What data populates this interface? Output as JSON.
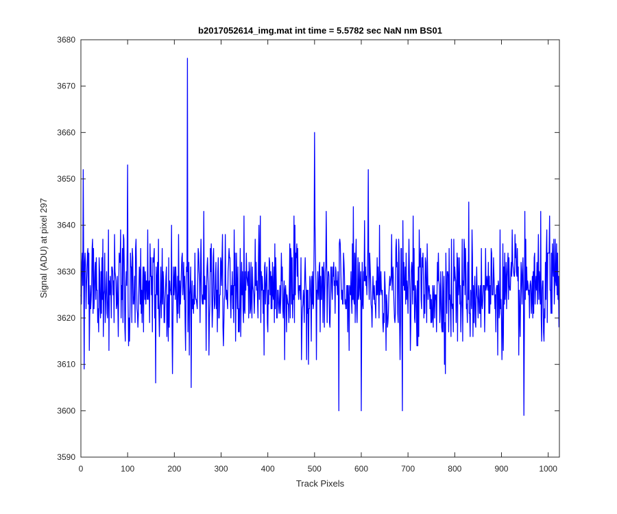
{
  "chart_data": {
    "type": "line",
    "title": "b2017052614_img.mat int time = 5.5782 sec  NaN nm BS01",
    "xlabel": "Track Pixels",
    "ylabel": "Signal (ADU) at pixel 297",
    "xlim": [
      0,
      1024
    ],
    "ylim": [
      3590,
      3680
    ],
    "xticks": [
      0,
      100,
      200,
      300,
      400,
      500,
      600,
      700,
      800,
      900,
      1000
    ],
    "yticks": [
      3590,
      3600,
      3610,
      3620,
      3630,
      3640,
      3650,
      3660,
      3670,
      3680
    ],
    "grid": false,
    "line_color": "#0000ff",
    "baseline_mean": 3626,
    "baseline_spread": 6,
    "x_step": 1,
    "x_start": 0,
    "x_end": 1023,
    "notable_points": [
      {
        "x": 5,
        "y": 3652
      },
      {
        "x": 100,
        "y": 3653
      },
      {
        "x": 160,
        "y": 3606
      },
      {
        "x": 228,
        "y": 3676
      },
      {
        "x": 236,
        "y": 3605
      },
      {
        "x": 500,
        "y": 3660
      },
      {
        "x": 552,
        "y": 3600
      },
      {
        "x": 600,
        "y": 3600
      },
      {
        "x": 615,
        "y": 3652
      },
      {
        "x": 688,
        "y": 3600
      },
      {
        "x": 830,
        "y": 3645
      },
      {
        "x": 948,
        "y": 3599
      },
      {
        "x": 1003,
        "y": 3642
      }
    ]
  }
}
